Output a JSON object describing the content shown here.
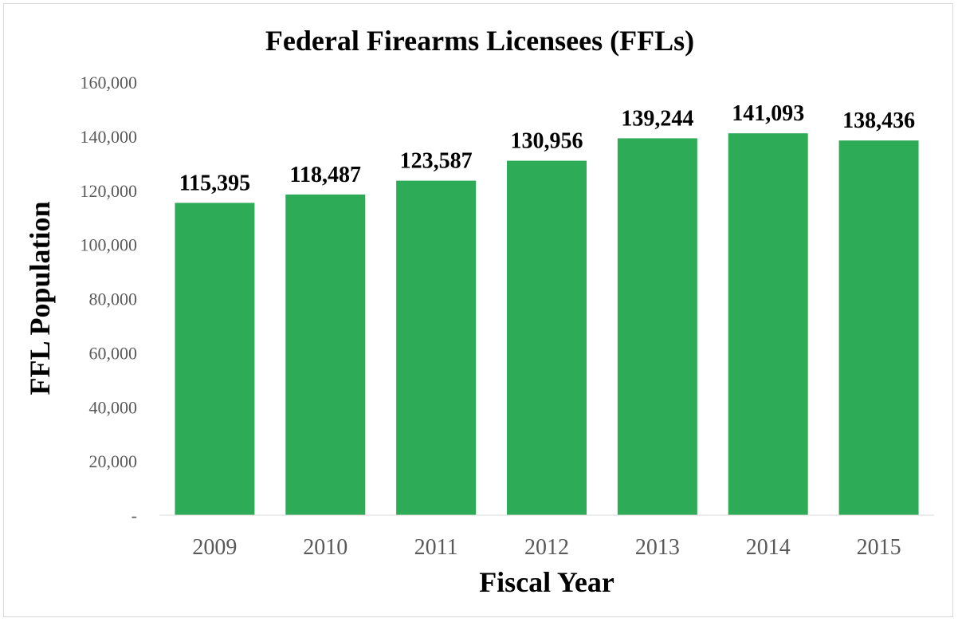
{
  "chart_data": {
    "type": "bar",
    "title": "Federal Firearms Licensees (FFLs)",
    "xlabel": "Fiscal Year",
    "ylabel": "FFL Population",
    "categories": [
      "2009",
      "2010",
      "2011",
      "2012",
      "2013",
      "2014",
      "2015"
    ],
    "values": [
      115395,
      118487,
      123587,
      130956,
      139244,
      141093,
      138436
    ],
    "data_labels": [
      "115,395",
      "118,487",
      "123,587",
      "130,956",
      "139,244",
      "141,093",
      "138,436"
    ],
    "ylim": [
      0,
      160000
    ],
    "yticks": [
      0,
      20000,
      40000,
      60000,
      80000,
      100000,
      120000,
      140000,
      160000
    ],
    "ytick_labels": [
      "-",
      "20,000",
      "40,000",
      "60,000",
      "80,000",
      "100,000",
      "120,000",
      "140,000",
      "160,000"
    ],
    "bar_color": "#2eab56",
    "grid": false,
    "legend": "none"
  }
}
